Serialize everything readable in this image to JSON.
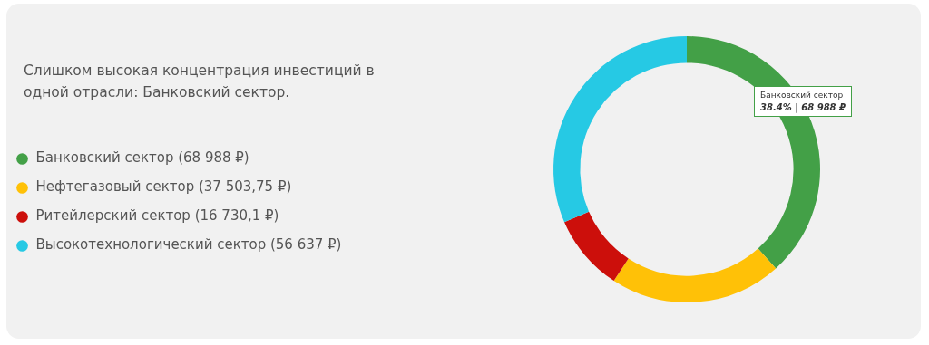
{
  "chart_data": {
    "type": "donut",
    "title": "Слишком высокая концентрация инвестиций в одной отрасли: Банковский сектор.",
    "categories": [
      "Банковский сектор (68 988 ₽)",
      "Нефтегазовый сектор (37 503,75 ₽)",
      "Ритейлерский сектор (16 730,1 ₽)",
      "Высокотехнологический сектор (56 637 ₽)"
    ],
    "values": [
      68988,
      37503.75,
      16730.1,
      56637
    ],
    "colors": [
      "#43a047",
      "#ffc107",
      "#cc0f0b",
      "#26c9e4"
    ],
    "legend": "left",
    "annotations": [
      "Банковский сектор",
      "38.4% | 68 988 ₽"
    ]
  }
}
